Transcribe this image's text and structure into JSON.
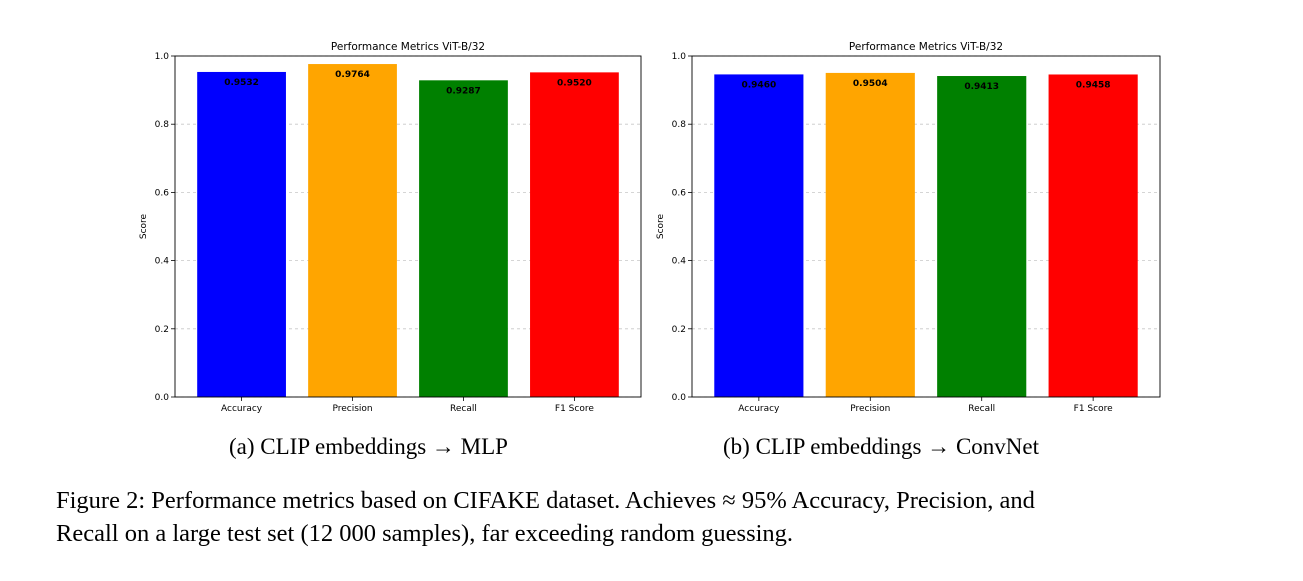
{
  "chart_data": [
    {
      "type": "bar",
      "title": "Performance Metrics ViT-B/32",
      "xlabel": "",
      "ylabel": "Score",
      "ylim": [
        0,
        1.0
      ],
      "yticks": [
        "0.0",
        "0.2",
        "0.4",
        "0.6",
        "0.8",
        "1.0"
      ],
      "grid": "y-dashed",
      "categories": [
        "Accuracy",
        "Precision",
        "Recall",
        "F1 Score"
      ],
      "values": [
        0.9532,
        0.9764,
        0.9287,
        0.952
      ],
      "data_labels": [
        "0.9532",
        "0.9764",
        "0.9287",
        "0.9520"
      ],
      "colors": [
        "#0000ff",
        "#ffa500",
        "#008000",
        "#ff0000"
      ]
    },
    {
      "type": "bar",
      "title": "Performance Metrics ViT-B/32",
      "xlabel": "",
      "ylabel": "Score",
      "ylim": [
        0,
        1.0
      ],
      "yticks": [
        "0.0",
        "0.2",
        "0.4",
        "0.6",
        "0.8",
        "1.0"
      ],
      "grid": "y-dashed",
      "categories": [
        "Accuracy",
        "Precision",
        "Recall",
        "F1 Score"
      ],
      "values": [
        0.946,
        0.9504,
        0.9413,
        0.9458
      ],
      "data_labels": [
        "0.9460",
        "0.9504",
        "0.9413",
        "0.9458"
      ],
      "colors": [
        "#0000ff",
        "#ffa500",
        "#008000",
        "#ff0000"
      ]
    }
  ],
  "subcaptions": {
    "a": "(a) CLIP embeddings → MLP",
    "b": "(b) CLIP embeddings → ConvNet"
  },
  "figure_caption": {
    "line1": "Figure 2: Performance metrics based on CIFAKE dataset. Achieves ≈ 95% Accuracy, Precision, and",
    "line2": "Recall on a large test set (12 000 samples), far exceeding random guessing."
  }
}
